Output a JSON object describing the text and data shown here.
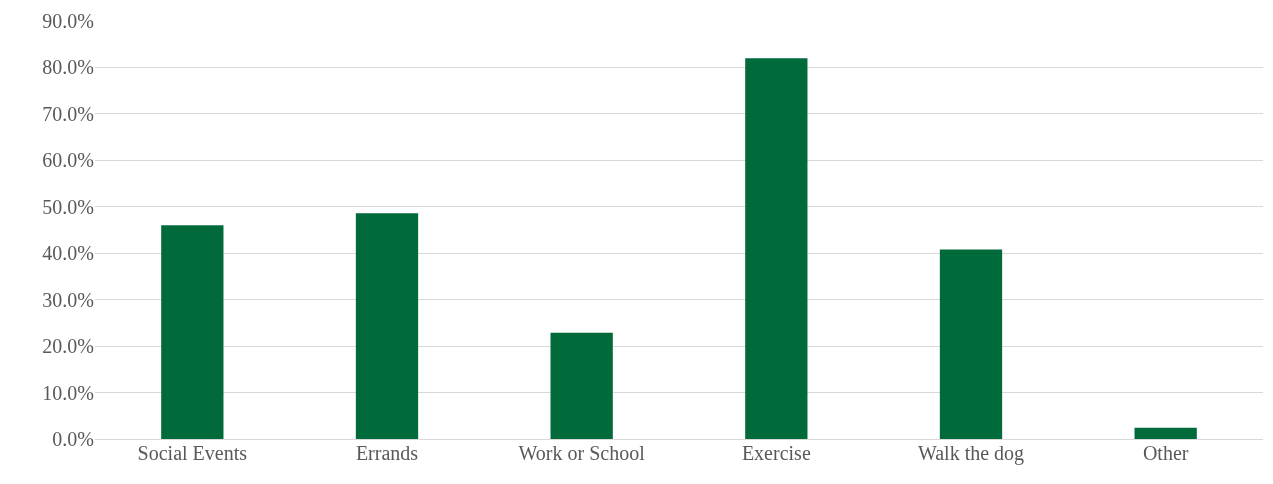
{
  "chart_data": {
    "type": "bar",
    "categories": [
      "Social Events",
      "Errands",
      "Work or School",
      "Exercise",
      "Walk the dog",
      "Other"
    ],
    "values": [
      46.0,
      48.6,
      22.9,
      82.0,
      40.8,
      2.4
    ],
    "color": "#006a3b",
    "ylim": [
      0,
      90
    ],
    "yticks": [
      {
        "value": 0,
        "label": "0.0%"
      },
      {
        "value": 10,
        "label": "10.0%"
      },
      {
        "value": 20,
        "label": "20.0%"
      },
      {
        "value": 30,
        "label": "30.0%"
      },
      {
        "value": 40,
        "label": "40.0%"
      },
      {
        "value": 50,
        "label": "50.0%"
      },
      {
        "value": 60,
        "label": "60.0%"
      },
      {
        "value": 70,
        "label": "70.0%"
      },
      {
        "value": 80,
        "label": "80.0%"
      },
      {
        "value": 90,
        "label": "90.0%"
      }
    ],
    "grid": "y"
  }
}
